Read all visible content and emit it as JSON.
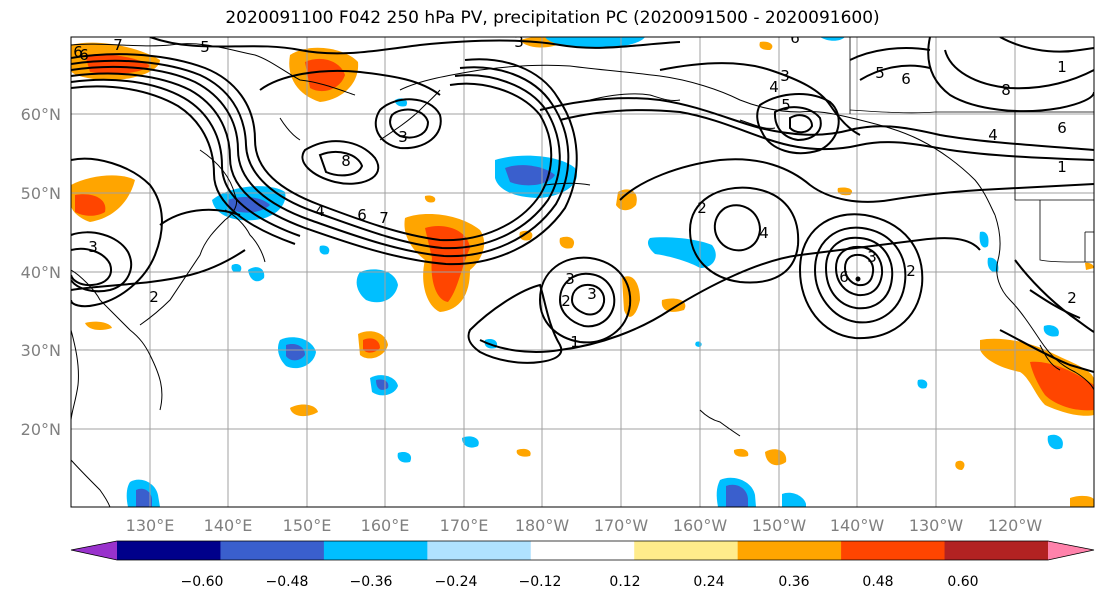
{
  "title": "2020091100 F042 250 hPa PV, precipitation PC (2020091500 - 2020091600)",
  "latitude_labels": [
    "60°N",
    "50°N",
    "40°N",
    "30°N",
    "20°N"
  ],
  "longitude_labels": [
    "130°E",
    "140°E",
    "150°E",
    "160°E",
    "170°E",
    "180°W",
    "170°W",
    "160°W",
    "150°W",
    "140°W",
    "130°W",
    "120°W"
  ],
  "colorbar": {
    "colors": [
      "#9932cc",
      "#00008b",
      "#3a5fcd",
      "#00bfff",
      "#b0e2ff",
      "#ffffff",
      "#ffec8b",
      "#ffa500",
      "#ff4500",
      "#b22222",
      "#ff82ab"
    ],
    "tick_labels": [
      "−0.60",
      "−0.48",
      "−0.36",
      "−0.24",
      "−0.12",
      "0.12",
      "0.24",
      "0.36",
      "0.48",
      "0.60"
    ]
  },
  "contour_labels": [
    "6",
    "7",
    "5",
    "3",
    "6",
    "1",
    "8",
    "5",
    "6",
    "4",
    "6",
    "1",
    "4",
    "8",
    "3",
    "4",
    "6",
    "7",
    "2",
    "4",
    "2",
    "3",
    "2",
    "1",
    "2",
    "3",
    "6",
    "2",
    "3",
    "3",
    "3",
    "5",
    "6"
  ]
}
